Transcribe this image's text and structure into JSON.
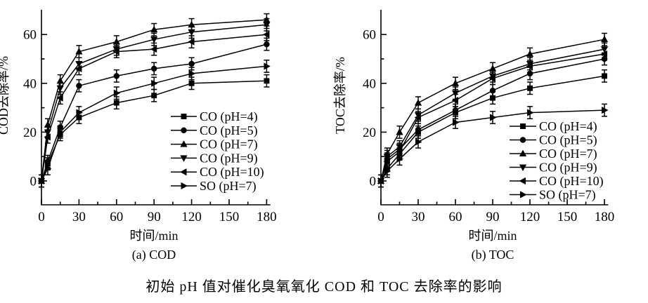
{
  "caption": "初始 pH 值对催化臭氧氧化 COD 和 TOC 去除率的影响",
  "colors": {
    "foreground": "#000000",
    "background": "#ffffff"
  },
  "chart_data": [
    {
      "type": "line",
      "panel_label": "(a) COD",
      "xlabel": "时间/min",
      "ylabel": "COD去除率/%",
      "x": [
        0,
        5,
        15,
        30,
        60,
        90,
        120,
        180
      ],
      "x_ticks": [
        0,
        30,
        60,
        90,
        120,
        150,
        180
      ],
      "x_minor_ticks": [
        15,
        45,
        75,
        105,
        135,
        165
      ],
      "y_ticks": [
        0,
        20,
        40,
        60
      ],
      "y_minor_ticks": [
        10,
        30,
        50
      ],
      "xlim": [
        0,
        183
      ],
      "ylim": [
        -10,
        70
      ],
      "grid": false,
      "legend_position": "inside-lower-right",
      "error_bar_approx": 2.5,
      "series": [
        {
          "name": "CO (pH=4)",
          "marker": "square",
          "values": [
            0,
            7,
            19,
            26,
            32,
            35,
            40,
            41
          ]
        },
        {
          "name": "CO (pH=5)",
          "marker": "circle",
          "values": [
            0,
            8,
            22,
            39,
            43,
            46,
            48,
            56
          ]
        },
        {
          "name": "CO (pH=7)",
          "marker": "triangle-up",
          "values": [
            0,
            23,
            41,
            53,
            57,
            62,
            64,
            66
          ]
        },
        {
          "name": "CO (pH=9)",
          "marker": "triangle-down",
          "values": [
            0,
            20,
            38,
            48,
            54,
            58,
            61,
            64
          ]
        },
        {
          "name": "CO (pH=10)",
          "marker": "triangle-left",
          "values": [
            0,
            18,
            34,
            46,
            53,
            54,
            57,
            60
          ]
        },
        {
          "name": "SO (pH=7)",
          "marker": "triangle-right",
          "values": [
            0,
            5,
            20,
            28,
            36,
            40,
            44,
            47
          ]
        }
      ]
    },
    {
      "type": "line",
      "panel_label": "(b) TOC",
      "xlabel": "时间/min",
      "ylabel": "TOC去除率/%",
      "x": [
        0,
        5,
        15,
        30,
        60,
        90,
        120,
        180
      ],
      "x_ticks": [
        0,
        30,
        60,
        90,
        120,
        150,
        180
      ],
      "x_minor_ticks": [
        15,
        45,
        75,
        105,
        135,
        165
      ],
      "y_ticks": [
        0,
        20,
        40,
        60
      ],
      "y_minor_ticks": [
        10,
        30,
        50
      ],
      "xlim": [
        0,
        183
      ],
      "ylim": [
        -10,
        70
      ],
      "grid": false,
      "legend_position": "inside-lower-right",
      "error_bar_approx": 2.5,
      "series": [
        {
          "name": "CO (pH=4)",
          "marker": "square",
          "values": [
            0,
            5,
            11,
            20,
            28,
            34,
            38,
            43
          ]
        },
        {
          "name": "CO (pH=5)",
          "marker": "circle",
          "values": [
            0,
            9,
            13,
            21,
            29,
            37,
            44,
            50
          ]
        },
        {
          "name": "CO (pH=7)",
          "marker": "triangle-up",
          "values": [
            0,
            11,
            20,
            32,
            40,
            46,
            52,
            58
          ]
        },
        {
          "name": "CO (pH=9)",
          "marker": "triangle-down",
          "values": [
            0,
            10,
            14,
            27,
            36,
            43,
            48,
            54
          ]
        },
        {
          "name": "CO (pH=10)",
          "marker": "triangle-left",
          "values": [
            0,
            8,
            12,
            26,
            33,
            42,
            47,
            52
          ]
        },
        {
          "name": "SO (pH=7)",
          "marker": "triangle-right",
          "values": [
            0,
            4,
            9,
            16,
            24,
            26,
            28,
            29
          ]
        }
      ]
    }
  ]
}
